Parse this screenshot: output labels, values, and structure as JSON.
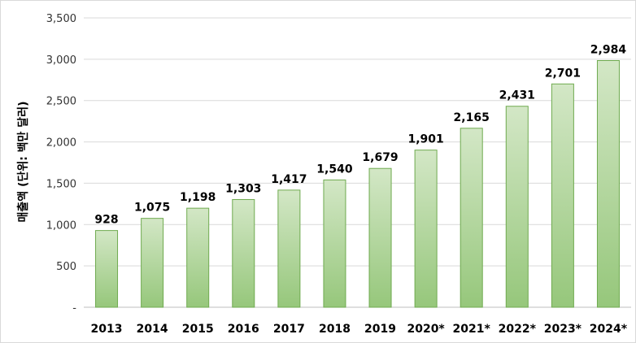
{
  "chart_data": {
    "type": "bar",
    "title": "",
    "xlabel": "",
    "ylabel": "매출액 (단위: 백만 달러)",
    "categories": [
      "2013",
      "2014",
      "2015",
      "2016",
      "2017",
      "2018",
      "2019",
      "2020*",
      "2021*",
      "2022*",
      "2023*",
      "2024*"
    ],
    "values": [
      928,
      1075,
      1198,
      1303,
      1417,
      1540,
      1679,
      1901,
      2165,
      2431,
      2701,
      2984
    ],
    "data_labels": [
      "928",
      "1,075",
      "1,198",
      "1,303",
      "1,417",
      "1,540",
      "1,679",
      "1,901",
      "2,165",
      "2,431",
      "2,701",
      "2,984"
    ],
    "y_tick_labels": [
      "-",
      "500",
      "1,000",
      "1,500",
      "2,000",
      "2,500",
      "3,000",
      "3,500"
    ],
    "y_tick_values": [
      0,
      500,
      1000,
      1500,
      2000,
      2500,
      3000,
      3500
    ],
    "ylim": [
      0,
      3500
    ],
    "grid": true,
    "legend": "none",
    "colors": {
      "bar_top": "#d3e7c6",
      "bar_bottom": "#96c77b",
      "bar_border": "#6faa4f",
      "gridline": "#d9d9d9",
      "axis": "#bfbfbf"
    }
  }
}
